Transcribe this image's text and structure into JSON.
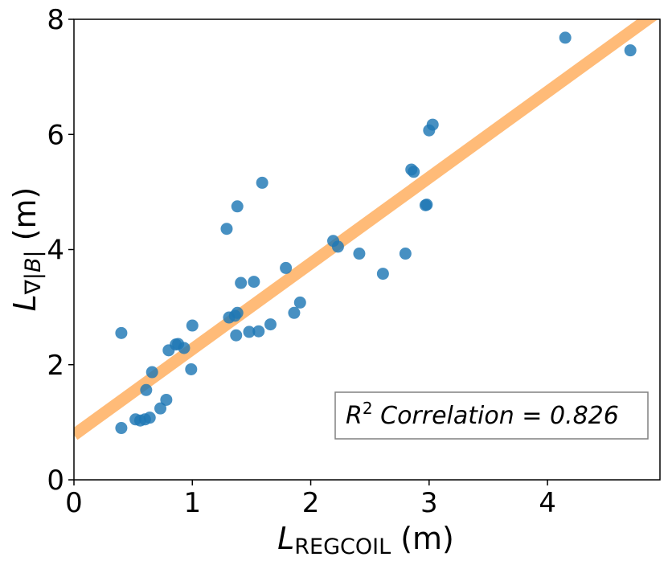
{
  "chart_data": {
    "type": "scatter",
    "title": "",
    "xlabel": {
      "main": "L",
      "sub": "REGCOIL",
      "unit": "(m)"
    },
    "ylabel": {
      "main": "L",
      "sub": "∇|B|",
      "unit": "(m)"
    },
    "xlim": [
      0,
      4.95
    ],
    "ylim": [
      0,
      8
    ],
    "xticks": [
      0,
      1,
      2,
      3,
      4
    ],
    "yticks": [
      0,
      2,
      4,
      6,
      8
    ],
    "grid": false,
    "point_color": "#1f77b4",
    "fit_color": "#ffbb78",
    "fit_line": {
      "intercept": 0.78,
      "slope": 1.49
    },
    "annotation": {
      "prefix": "R",
      "sup": "2",
      "text": " Correlation = 0.826"
    },
    "points": [
      [
        0.4,
        2.55
      ],
      [
        0.4,
        0.9
      ],
      [
        0.52,
        1.05
      ],
      [
        0.56,
        1.03
      ],
      [
        0.6,
        1.05
      ],
      [
        0.64,
        1.08
      ],
      [
        0.61,
        1.56
      ],
      [
        0.66,
        1.87
      ],
      [
        0.73,
        1.24
      ],
      [
        0.78,
        1.39
      ],
      [
        0.8,
        2.25
      ],
      [
        0.86,
        2.35
      ],
      [
        0.88,
        2.36
      ],
      [
        0.93,
        2.29
      ],
      [
        0.99,
        1.92
      ],
      [
        1.0,
        2.68
      ],
      [
        1.29,
        4.36
      ],
      [
        1.31,
        2.82
      ],
      [
        1.36,
        2.85
      ],
      [
        1.37,
        2.51
      ],
      [
        1.38,
        2.9
      ],
      [
        1.38,
        4.75
      ],
      [
        1.41,
        3.42
      ],
      [
        1.48,
        2.57
      ],
      [
        1.52,
        3.44
      ],
      [
        1.56,
        2.58
      ],
      [
        1.59,
        5.16
      ],
      [
        1.66,
        2.7
      ],
      [
        1.79,
        3.68
      ],
      [
        1.86,
        2.9
      ],
      [
        1.91,
        3.08
      ],
      [
        2.19,
        4.15
      ],
      [
        2.23,
        4.05
      ],
      [
        2.41,
        3.93
      ],
      [
        2.61,
        3.58
      ],
      [
        2.8,
        3.93
      ],
      [
        2.85,
        5.39
      ],
      [
        2.87,
        5.35
      ],
      [
        2.97,
        4.77
      ],
      [
        2.98,
        4.78
      ],
      [
        3.0,
        6.07
      ],
      [
        3.03,
        6.17
      ],
      [
        4.15,
        7.68
      ],
      [
        4.7,
        7.46
      ]
    ]
  }
}
